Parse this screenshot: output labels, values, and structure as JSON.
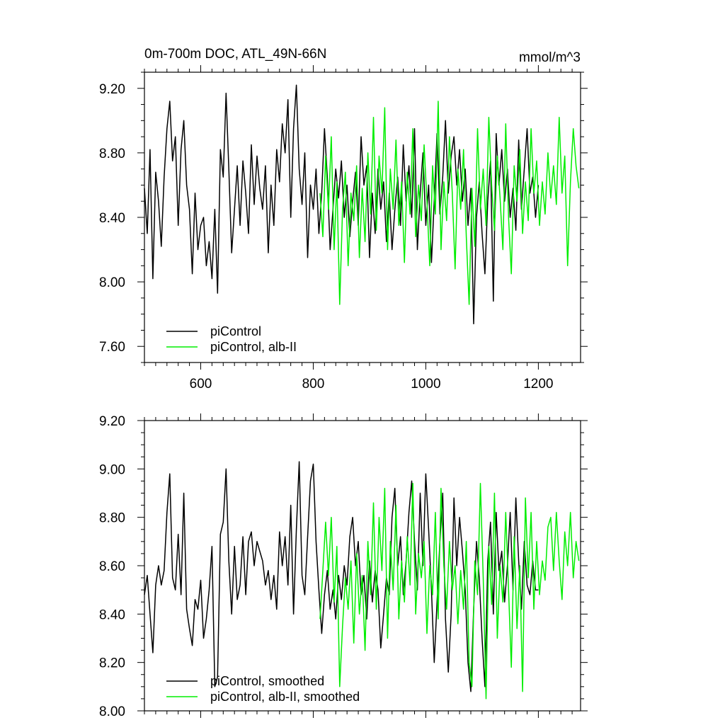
{
  "chart_data": [
    {
      "type": "line",
      "title": "0m-700m DOC, ATL_49N-66N",
      "units": "mmol/m^3",
      "xlabel": "",
      "ylabel": "",
      "xlim": [
        500,
        1275
      ],
      "ylim": [
        7.5,
        9.3
      ],
      "xticks": [
        600,
        800,
        1000,
        1200
      ],
      "xtick_labels": [
        "600",
        "800",
        "1000",
        "1200"
      ],
      "yticks": [
        7.6,
        8.0,
        8.4,
        8.8,
        9.2
      ],
      "ytick_labels": [
        "7.60",
        "8.00",
        "8.40",
        "8.80",
        "9.20"
      ],
      "legend_position": "bottom-left",
      "grid": false,
      "series": [
        {
          "name": "piControl",
          "color": "#000000",
          "x": [
            500,
            505,
            510,
            515,
            520,
            525,
            530,
            535,
            540,
            545,
            550,
            555,
            560,
            565,
            570,
            575,
            580,
            585,
            590,
            595,
            600,
            605,
            610,
            615,
            620,
            625,
            630,
            635,
            640,
            645,
            650,
            655,
            660,
            665,
            670,
            675,
            680,
            685,
            690,
            695,
            700,
            705,
            710,
            715,
            720,
            725,
            730,
            735,
            740,
            745,
            750,
            755,
            760,
            765,
            770,
            775,
            780,
            785,
            790,
            795,
            800,
            805,
            810,
            815,
            820,
            825,
            830,
            835,
            840,
            845,
            850,
            855,
            860,
            865,
            870,
            875,
            880,
            885,
            890,
            895,
            900,
            905,
            910,
            915,
            920,
            925,
            930,
            935,
            940,
            945,
            950,
            955,
            960,
            965,
            970,
            975,
            980,
            985,
            990,
            995,
            1000,
            1005,
            1010,
            1015,
            1020,
            1025,
            1030,
            1035,
            1040,
            1045,
            1050,
            1055,
            1060,
            1065,
            1070,
            1075,
            1080,
            1085,
            1090,
            1095,
            1100,
            1105,
            1110,
            1115,
            1120,
            1125,
            1130,
            1135,
            1140,
            1145,
            1150,
            1155,
            1160,
            1165,
            1170,
            1175,
            1180,
            1185,
            1190,
            1195,
            1200
          ],
          "values": [
            8.58,
            8.3,
            8.82,
            8.02,
            8.68,
            8.5,
            8.22,
            8.65,
            8.95,
            9.12,
            8.75,
            8.9,
            8.35,
            8.82,
            9.0,
            8.6,
            8.45,
            8.05,
            8.55,
            8.2,
            8.35,
            8.4,
            8.1,
            8.25,
            8.02,
            8.45,
            7.93,
            8.82,
            8.65,
            9.17,
            8.7,
            8.18,
            8.45,
            8.72,
            8.35,
            8.75,
            8.55,
            8.3,
            8.85,
            8.48,
            8.78,
            8.58,
            8.45,
            8.72,
            8.18,
            8.6,
            8.35,
            8.82,
            8.62,
            8.98,
            8.8,
            9.13,
            8.4,
            8.95,
            9.22,
            8.7,
            8.48,
            8.8,
            8.15,
            8.6,
            8.45,
            8.7,
            8.3,
            8.55,
            8.95,
            8.65,
            8.2,
            8.45,
            8.7,
            8.52,
            8.75,
            8.4,
            8.6,
            8.28,
            8.5,
            8.68,
            8.35,
            8.9,
            8.6,
            8.72,
            8.15,
            8.55,
            8.3,
            8.7,
            8.45,
            8.62,
            8.25,
            8.55,
            8.2,
            8.45,
            8.65,
            8.35,
            8.85,
            8.5,
            8.72,
            8.4,
            8.95,
            8.2,
            8.55,
            8.8,
            8.35,
            8.6,
            8.12,
            8.5,
            8.92,
            8.42,
            8.65,
            9.0,
            8.55,
            8.78,
            8.9,
            8.6,
            8.82,
            8.5,
            8.7,
            8.35,
            8.58,
            7.74,
            8.4,
            8.62,
            8.3,
            8.05,
            8.5,
            8.75,
            7.88,
            8.92,
            8.6,
            8.82,
            8.5,
            8.7,
            8.4,
            8.58,
            8.32,
            8.88,
            8.45,
            8.7,
            8.95,
            8.55,
            8.65,
            8.4,
            8.6
          ]
        },
        {
          "name": "piControl, alb-II",
          "color": "#00ee00",
          "x": [
            812,
            817,
            822,
            827,
            832,
            837,
            842,
            847,
            852,
            857,
            862,
            867,
            872,
            877,
            882,
            887,
            892,
            897,
            902,
            907,
            912,
            917,
            922,
            927,
            932,
            937,
            942,
            947,
            952,
            957,
            962,
            967,
            972,
            977,
            982,
            987,
            992,
            997,
            1002,
            1007,
            1012,
            1017,
            1022,
            1027,
            1032,
            1037,
            1042,
            1047,
            1052,
            1057,
            1062,
            1067,
            1072,
            1077,
            1082,
            1087,
            1092,
            1097,
            1102,
            1107,
            1112,
            1117,
            1122,
            1127,
            1132,
            1137,
            1142,
            1147,
            1152,
            1157,
            1162,
            1167,
            1172,
            1177,
            1182,
            1187,
            1192,
            1197,
            1202,
            1207,
            1212,
            1217,
            1222,
            1227,
            1232,
            1237,
            1242,
            1247,
            1252,
            1257,
            1262,
            1267,
            1272
          ],
          "values": [
            8.55,
            8.28,
            8.78,
            8.45,
            8.9,
            8.2,
            8.62,
            7.86,
            8.45,
            8.68,
            8.1,
            8.55,
            8.38,
            8.72,
            8.15,
            8.58,
            8.25,
            8.8,
            8.42,
            9.02,
            8.32,
            8.78,
            8.55,
            9.08,
            8.2,
            8.7,
            8.45,
            8.88,
            8.35,
            8.62,
            8.12,
            8.68,
            8.42,
            8.95,
            8.28,
            8.6,
            8.38,
            8.85,
            8.5,
            8.1,
            8.72,
            8.42,
            9.12,
            8.2,
            8.62,
            8.38,
            8.9,
            8.55,
            8.08,
            8.7,
            8.45,
            8.82,
            8.28,
            7.86,
            8.58,
            8.22,
            8.95,
            8.45,
            8.7,
            8.35,
            9.02,
            8.6,
            8.32,
            8.78,
            8.52,
            8.2,
            8.98,
            8.4,
            8.05,
            8.72,
            8.5,
            8.82,
            8.3,
            8.62,
            8.38,
            8.95,
            8.55,
            8.75,
            8.35,
            8.62,
            8.42,
            8.8,
            8.52,
            8.72,
            8.48,
            9.02,
            8.55,
            8.78,
            8.1,
            8.62,
            8.95,
            8.72,
            8.58
          ]
        }
      ]
    },
    {
      "type": "line",
      "title": "",
      "xlabel": "",
      "ylabel": "",
      "xlim": [
        500,
        1275
      ],
      "ylim": [
        8.0,
        9.2
      ],
      "xticks": [
        600,
        800,
        1000,
        1200
      ],
      "yticks": [
        8.0,
        8.2,
        8.4,
        8.6,
        8.8,
        9.0,
        9.2
      ],
      "ytick_labels": [
        "8.00",
        "8.20",
        "8.40",
        "8.60",
        "8.80",
        "9.00",
        "9.20"
      ],
      "legend_position": "bottom-left",
      "grid": false,
      "series": [
        {
          "name": "piControl, smoothed",
          "color": "#000000",
          "x": [
            500,
            505,
            510,
            515,
            520,
            525,
            530,
            535,
            540,
            545,
            550,
            555,
            560,
            565,
            570,
            575,
            580,
            585,
            590,
            595,
            600,
            605,
            610,
            615,
            620,
            625,
            630,
            635,
            640,
            645,
            650,
            655,
            660,
            665,
            670,
            675,
            680,
            685,
            690,
            695,
            700,
            705,
            710,
            715,
            720,
            725,
            730,
            735,
            740,
            745,
            750,
            755,
            760,
            765,
            770,
            775,
            780,
            785,
            790,
            795,
            800,
            805,
            810,
            815,
            820,
            825,
            830,
            835,
            840,
            845,
            850,
            855,
            860,
            865,
            870,
            875,
            880,
            885,
            890,
            895,
            900,
            905,
            910,
            915,
            920,
            925,
            930,
            935,
            940,
            945,
            950,
            955,
            960,
            965,
            970,
            975,
            980,
            985,
            990,
            995,
            1000,
            1005,
            1010,
            1015,
            1020,
            1025,
            1030,
            1035,
            1040,
            1045,
            1050,
            1055,
            1060,
            1065,
            1070,
            1075,
            1080,
            1085,
            1090,
            1095,
            1100,
            1105,
            1110,
            1115,
            1120,
            1125,
            1130,
            1135,
            1140,
            1145,
            1150,
            1155,
            1160,
            1165,
            1170,
            1175,
            1180,
            1185,
            1190,
            1195,
            1200
          ],
          "values": [
            8.48,
            8.56,
            8.4,
            8.24,
            8.52,
            8.6,
            8.52,
            8.58,
            8.82,
            8.98,
            8.55,
            8.5,
            8.73,
            8.48,
            8.9,
            8.42,
            8.34,
            8.27,
            8.46,
            8.42,
            8.54,
            8.3,
            8.38,
            8.5,
            8.68,
            8.1,
            8.14,
            8.73,
            8.78,
            9.0,
            8.62,
            8.4,
            8.68,
            8.46,
            8.52,
            8.72,
            8.48,
            8.7,
            8.74,
            8.6,
            8.7,
            8.66,
            8.62,
            8.52,
            8.58,
            8.46,
            8.56,
            8.42,
            8.74,
            8.6,
            8.72,
            8.52,
            8.85,
            8.4,
            8.75,
            9.03,
            8.56,
            8.48,
            8.72,
            8.95,
            9.02,
            8.7,
            8.5,
            8.32,
            8.48,
            8.58,
            8.42,
            8.5,
            8.38,
            8.56,
            8.46,
            8.6,
            8.52,
            8.72,
            8.8,
            8.6,
            8.7,
            8.48,
            8.56,
            8.38,
            8.62,
            8.45,
            8.58,
            8.5,
            8.26,
            8.4,
            8.55,
            8.48,
            8.8,
            8.92,
            8.6,
            8.72,
            8.48,
            8.62,
            8.82,
            8.95,
            8.7,
            8.5,
            8.9,
            8.6,
            8.98,
            8.75,
            8.5,
            8.2,
            8.45,
            8.7,
            8.9,
            8.38,
            8.16,
            8.4,
            8.88,
            8.6,
            8.8,
            8.66,
            8.5,
            8.2,
            8.08,
            8.42,
            8.7,
            8.55,
            8.3,
            8.1,
            8.62,
            8.78,
            8.4,
            8.82,
            8.58,
            8.66,
            8.45,
            8.6,
            8.82,
            8.5,
            8.88,
            8.62,
            8.42,
            8.7,
            8.52,
            8.48,
            8.62,
            8.5,
            8.5
          ]
        },
        {
          "name": "piControl, alb-II, smoothed",
          "color": "#00ee00",
          "x": [
            812,
            817,
            822,
            827,
            832,
            837,
            842,
            847,
            852,
            857,
            862,
            867,
            872,
            877,
            882,
            887,
            892,
            897,
            902,
            907,
            912,
            917,
            922,
            927,
            932,
            937,
            942,
            947,
            952,
            957,
            962,
            967,
            972,
            977,
            982,
            987,
            992,
            997,
            1002,
            1007,
            1012,
            1017,
            1022,
            1027,
            1032,
            1037,
            1042,
            1047,
            1052,
            1057,
            1062,
            1067,
            1072,
            1077,
            1082,
            1087,
            1092,
            1097,
            1102,
            1107,
            1112,
            1117,
            1122,
            1127,
            1132,
            1137,
            1142,
            1147,
            1152,
            1157,
            1162,
            1167,
            1172,
            1177,
            1182,
            1187,
            1192,
            1197,
            1202,
            1207,
            1212,
            1217,
            1222,
            1227,
            1232,
            1237,
            1242,
            1247,
            1252,
            1257,
            1262,
            1267,
            1272
          ],
          "values": [
            8.38,
            8.58,
            8.78,
            8.56,
            8.8,
            8.45,
            8.68,
            8.1,
            8.35,
            8.55,
            8.42,
            8.62,
            8.28,
            8.65,
            8.4,
            8.56,
            8.25,
            8.7,
            8.48,
            8.86,
            8.42,
            8.8,
            8.58,
            8.92,
            8.3,
            8.7,
            8.5,
            8.85,
            8.38,
            8.62,
            8.45,
            8.72,
            8.52,
            8.94,
            8.4,
            8.65,
            8.55,
            8.7,
            8.32,
            8.6,
            8.48,
            8.82,
            8.38,
            8.92,
            8.6,
            8.42,
            8.7,
            8.5,
            8.6,
            8.36,
            8.58,
            8.42,
            8.7,
            8.2,
            8.1,
            8.62,
            8.48,
            8.94,
            8.55,
            8.05,
            8.68,
            8.44,
            8.9,
            8.3,
            8.6,
            8.45,
            8.82,
            8.5,
            8.18,
            8.72,
            8.34,
            8.6,
            8.08,
            8.88,
            8.55,
            8.82,
            8.42,
            8.7,
            8.48,
            8.62,
            8.54,
            8.76,
            8.8,
            8.58,
            8.82,
            8.62,
            8.46,
            8.74,
            8.6,
            8.82,
            8.55,
            8.7,
            8.62
          ]
        }
      ]
    }
  ]
}
